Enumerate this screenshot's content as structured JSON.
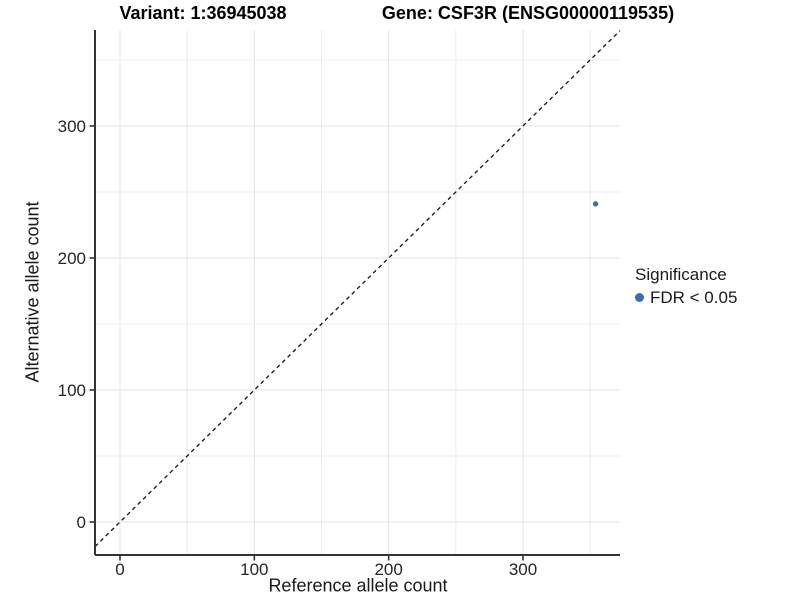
{
  "chart_data": {
    "type": "scatter",
    "titles": {
      "left": "Variant: 1:36945038",
      "right": "Gene: CSF3R (ENSG00000119535)"
    },
    "xlabel": "Reference allele count",
    "ylabel": "Alternative allele count",
    "x_ticks": [
      0,
      100,
      200,
      300
    ],
    "y_ticks": [
      0,
      100,
      200,
      300
    ],
    "xlim": [
      -18.6,
      372.2
    ],
    "ylim": [
      -25,
      372.7
    ],
    "grid": {
      "minor_step": 50,
      "major_step": 100,
      "major_color": "#e3e3e3",
      "minor_color": "#ececec",
      "background": "#ffffff"
    },
    "identity_line": {
      "slope": 1,
      "intercept": 0,
      "style": "dashed",
      "color": "#121212"
    },
    "points": [
      {
        "x": 354,
        "y": 241,
        "group": "FDR < 0.05",
        "color": "#3a70a9"
      }
    ],
    "legend": {
      "title": "Significance",
      "position": "right",
      "items": [
        {
          "label": "FDR < 0.05",
          "color": "#3a70a9"
        }
      ]
    },
    "colors": {
      "axis_line": "#333333",
      "tick_mark": "#333333",
      "tick_label": "#262626"
    }
  }
}
